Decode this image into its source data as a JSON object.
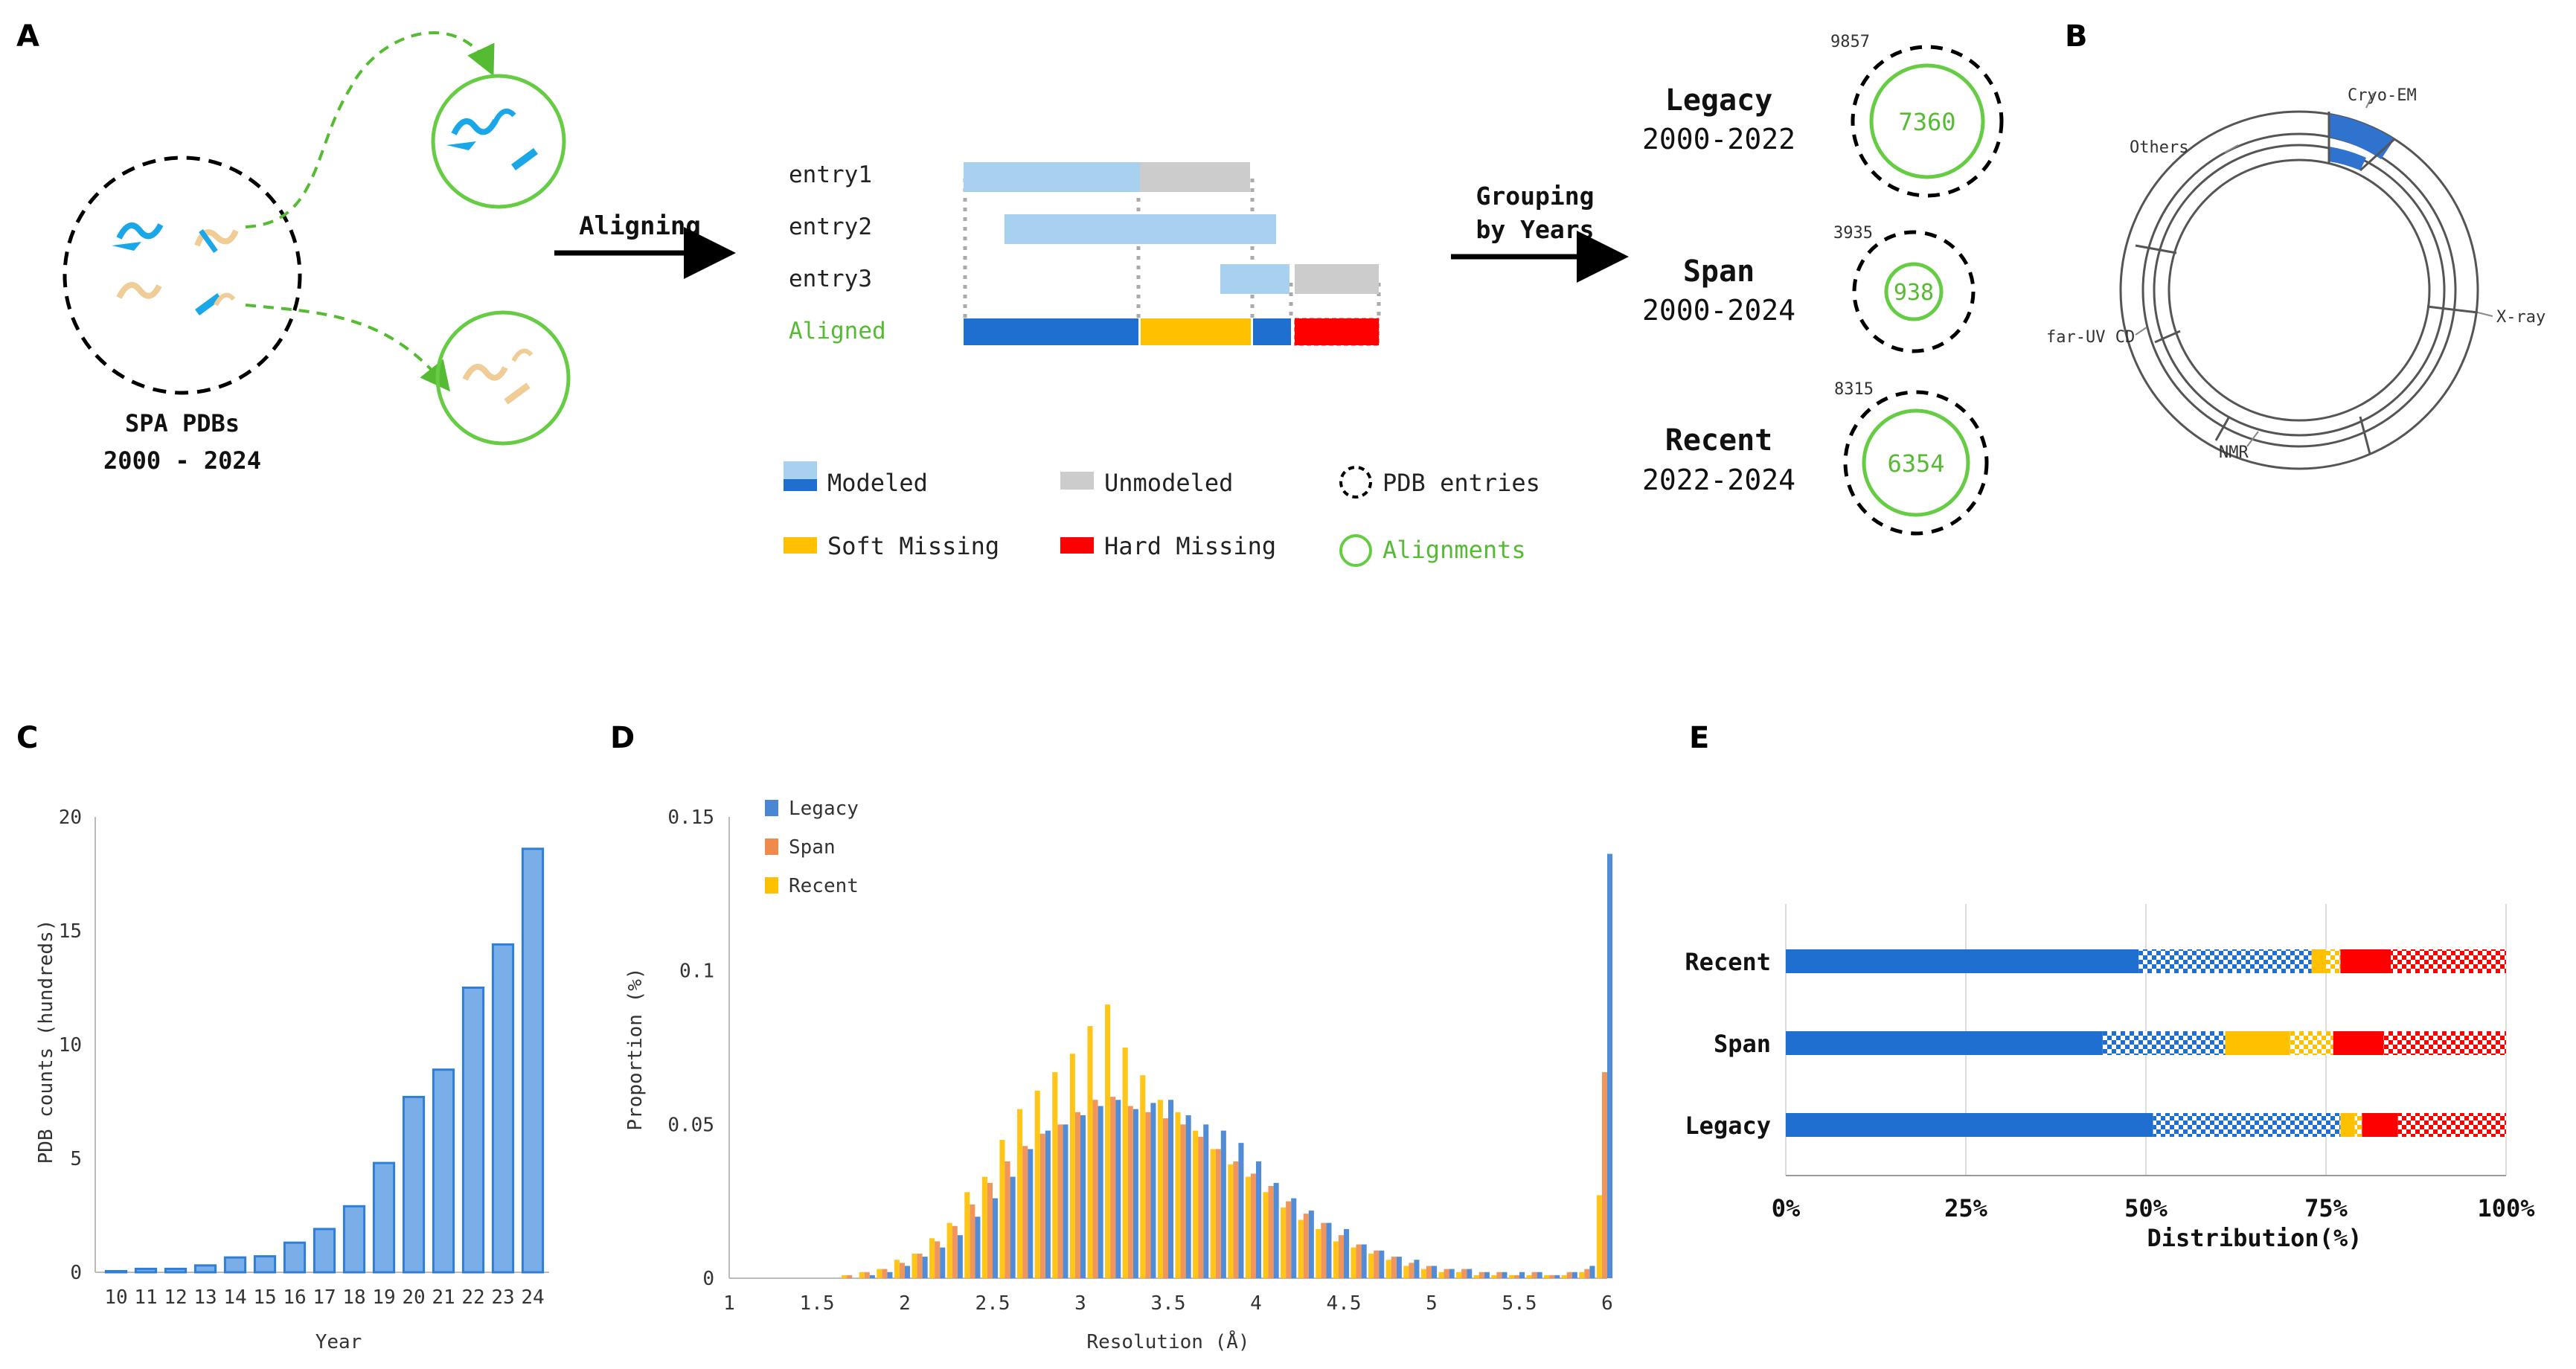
{
  "panels": {
    "A": "A",
    "B": "B",
    "C": "C",
    "D": "D",
    "E": "E"
  },
  "panel_a": {
    "spa_title": "SPA PDBs",
    "spa_range": "2000 - 2024",
    "aligning": "Aligning",
    "entries": [
      "entry1",
      "entry2",
      "entry3"
    ],
    "aligned": "Aligned",
    "grouping_line1": "Grouping",
    "grouping_line2": "by Years",
    "groups": [
      {
        "name": "Legacy",
        "years": "2000-2022",
        "entries": "9857",
        "alignments": "7360"
      },
      {
        "name": "Span",
        "years": "2000-2024",
        "entries": "3935",
        "alignments": "938"
      },
      {
        "name": "Recent",
        "years": "2022-2024",
        "entries": "8315",
        "alignments": "6354"
      }
    ],
    "legend": {
      "modeled": "Modeled",
      "unmodeled": "Unmodeled",
      "pdb_entries": "PDB entries",
      "soft_missing": "Soft Missing",
      "hard_missing": "Hard Missing",
      "alignments": "Alignments"
    },
    "colors": {
      "modeled_light": "#a8d0ef",
      "modeled_dark": "#1f6fd0",
      "unmodeled": "#cccccc",
      "soft": "#ffc000",
      "hard": "#ff0000",
      "green": "#66cc44",
      "blue_icon": "#1aa7e8",
      "tan_icon": "#f0cc96"
    }
  },
  "panel_b": {
    "labels": [
      "Cryo-EM",
      "Others",
      "X-ray",
      "far-UV CD",
      "NMR"
    ],
    "accent": "#2f73cf"
  },
  "chart_data": [
    {
      "panel": "C",
      "type": "bar",
      "categories": [
        "10",
        "11",
        "12",
        "13",
        "14",
        "15",
        "16",
        "17",
        "18",
        "19",
        "20",
        "21",
        "22",
        "23",
        "24"
      ],
      "values": [
        0.05,
        0.15,
        0.15,
        0.3,
        0.65,
        0.7,
        1.3,
        1.9,
        2.9,
        4.8,
        7.7,
        8.9,
        12.5,
        14.4,
        18.6
      ],
      "title": "",
      "xlabel": "Year",
      "ylabel": "PDB counts (hundreds)",
      "ylim": [
        0,
        20
      ],
      "yticks": [
        "0",
        "5",
        "10",
        "15",
        "20"
      ],
      "color": "#7aaee8"
    },
    {
      "panel": "D",
      "type": "bar",
      "xlabel": "Resolution (Å)",
      "ylabel": "Proportion (%)",
      "xlim": [
        1,
        6
      ],
      "ylim": [
        0,
        0.15
      ],
      "xticks": [
        "1",
        "1.5",
        "2",
        "2.5",
        "3",
        "3.5",
        "4",
        "4.5",
        "5",
        "5.5",
        "6"
      ],
      "yticks": [
        "0",
        "0.05",
        "0.1",
        "0.15"
      ],
      "bin_centers": [
        1.6,
        1.7,
        1.8,
        1.9,
        2.0,
        2.1,
        2.2,
        2.3,
        2.4,
        2.5,
        2.6,
        2.7,
        2.8,
        2.9,
        3.0,
        3.1,
        3.2,
        3.3,
        3.4,
        3.5,
        3.6,
        3.7,
        3.8,
        3.9,
        4.0,
        4.1,
        4.2,
        4.3,
        4.4,
        4.5,
        4.6,
        4.7,
        4.8,
        4.9,
        5.0,
        5.1,
        5.2,
        5.3,
        5.4,
        5.5,
        5.6,
        5.7,
        5.8,
        5.9,
        6.0
      ],
      "series": [
        {
          "name": "Legacy",
          "color": "#4a86d4",
          "values": [
            0.0,
            0.0,
            0.001,
            0.002,
            0.004,
            0.007,
            0.01,
            0.014,
            0.02,
            0.026,
            0.033,
            0.042,
            0.048,
            0.05,
            0.053,
            0.056,
            0.058,
            0.055,
            0.057,
            0.058,
            0.053,
            0.05,
            0.048,
            0.044,
            0.038,
            0.031,
            0.026,
            0.022,
            0.018,
            0.016,
            0.011,
            0.009,
            0.007,
            0.006,
            0.004,
            0.003,
            0.003,
            0.002,
            0.002,
            0.002,
            0.002,
            0.001,
            0.002,
            0.004,
            0.138
          ]
        },
        {
          "name": "Span",
          "color": "#ef8a4c",
          "values": [
            0.0,
            0.001,
            0.002,
            0.003,
            0.005,
            0.008,
            0.012,
            0.017,
            0.024,
            0.031,
            0.038,
            0.043,
            0.047,
            0.05,
            0.054,
            0.058,
            0.059,
            0.056,
            0.054,
            0.052,
            0.05,
            0.046,
            0.042,
            0.038,
            0.034,
            0.03,
            0.025,
            0.021,
            0.018,
            0.014,
            0.011,
            0.009,
            0.007,
            0.005,
            0.004,
            0.003,
            0.003,
            0.002,
            0.002,
            0.001,
            0.002,
            0.001,
            0.002,
            0.003,
            0.067
          ]
        },
        {
          "name": "Recent",
          "color": "#ffc000",
          "values": [
            0.0,
            0.001,
            0.002,
            0.003,
            0.006,
            0.008,
            0.013,
            0.018,
            0.028,
            0.033,
            0.045,
            0.055,
            0.061,
            0.067,
            0.073,
            0.082,
            0.089,
            0.075,
            0.066,
            0.058,
            0.054,
            0.048,
            0.042,
            0.037,
            0.033,
            0.028,
            0.023,
            0.019,
            0.016,
            0.012,
            0.01,
            0.008,
            0.006,
            0.004,
            0.003,
            0.002,
            0.002,
            0.001,
            0.001,
            0.001,
            0.001,
            0.001,
            0.001,
            0.002,
            0.027
          ]
        }
      ],
      "legend_position": "top-left"
    },
    {
      "panel": "E",
      "type": "bar",
      "orientation": "horizontal-stacked",
      "categories": [
        "Recent",
        "Span",
        "Legacy"
      ],
      "xlabel": "Distribution(%)",
      "xlim": [
        0,
        100
      ],
      "xticks": [
        "0%",
        "25%",
        "50%",
        "75%",
        "100%"
      ],
      "segments": [
        "Modeled (solid)",
        "Modeled (checkered)",
        "Soft Missing (solid)",
        "Soft Missing (checkered)",
        "Hard Missing (solid)",
        "Hard Missing (checkered)"
      ],
      "segment_colors": [
        "#1f6fd0",
        "#1f6fd0",
        "#ffc000",
        "#ffc000",
        "#ff0000",
        "#ff0000"
      ],
      "segment_patterned": [
        false,
        true,
        false,
        true,
        false,
        true
      ],
      "values": [
        [
          49,
          24,
          2,
          2,
          7,
          16
        ],
        [
          44,
          17,
          9,
          6,
          7,
          17
        ],
        [
          51,
          26,
          2,
          1,
          5,
          15
        ]
      ]
    }
  ]
}
